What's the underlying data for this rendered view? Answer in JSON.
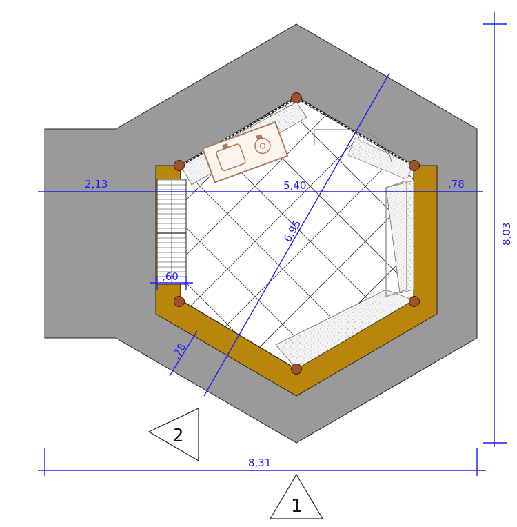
{
  "dimensions": {
    "left_offset": "2,13",
    "interior_width": "5,40",
    "right_offset": ",78",
    "diagonal": "6,95",
    "door_width": ",60",
    "wall_thickness": ",78",
    "total_height": "8,03",
    "total_width": "8,31"
  },
  "section_markers": {
    "front": "1",
    "side": "2"
  },
  "colors": {
    "ground": "#9a9a9a",
    "wall": "#b8860b",
    "column": "#a0522d",
    "dimension": "#1a1aff",
    "furniture": "#b07a5a"
  }
}
